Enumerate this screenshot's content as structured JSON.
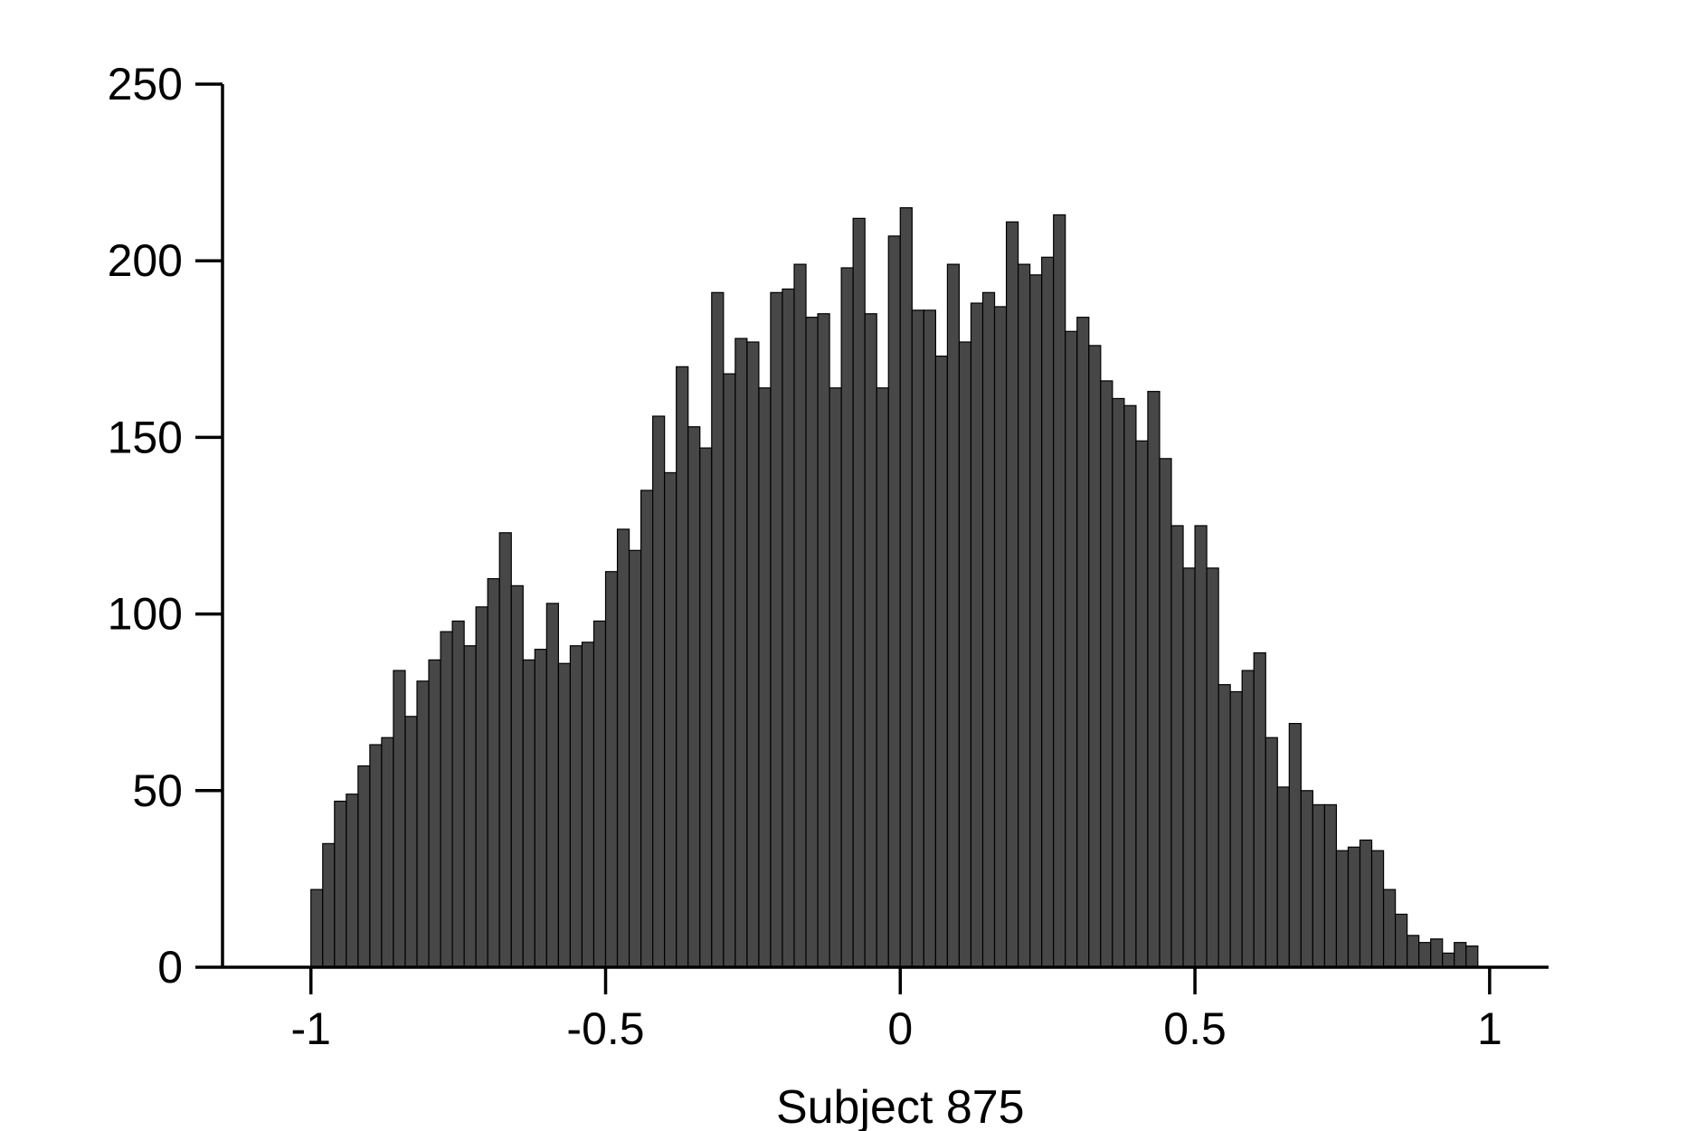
{
  "colors": {
    "bar_fill": "#474747",
    "bar_edge": "#000000",
    "axis": "#000000"
  },
  "chart_data": {
    "type": "bar",
    "title": "",
    "xlabel": "Subject 875",
    "ylabel": "",
    "xlim": [
      -1.15,
      1.1
    ],
    "ylim": [
      0,
      250
    ],
    "xticks": [
      -1,
      -0.5,
      0,
      0.5,
      1
    ],
    "xtick_labels": [
      "-1",
      "-0.5",
      "0",
      "0.5",
      "1"
    ],
    "yticks": [
      0,
      50,
      100,
      150,
      200,
      250
    ],
    "ytick_labels": [
      "0",
      "50",
      "100",
      "150",
      "200",
      "250"
    ],
    "bin_start": -1.0,
    "bin_width": 0.02,
    "values": [
      22,
      35,
      47,
      49,
      57,
      63,
      65,
      84,
      71,
      81,
      87,
      95,
      98,
      91,
      102,
      110,
      123,
      108,
      87,
      90,
      103,
      86,
      91,
      92,
      98,
      112,
      124,
      118,
      135,
      156,
      140,
      170,
      153,
      147,
      191,
      168,
      178,
      177,
      164,
      191,
      192,
      199,
      184,
      185,
      164,
      198,
      212,
      185,
      164,
      207,
      215,
      186,
      186,
      173,
      199,
      177,
      188,
      191,
      187,
      211,
      199,
      196,
      201,
      213,
      180,
      184,
      176,
      166,
      161,
      159,
      149,
      163,
      144,
      125,
      113,
      125,
      113,
      80,
      78,
      84,
      89,
      65,
      51,
      69,
      50,
      46,
      46,
      33,
      34,
      36,
      33,
      22,
      15,
      9,
      7,
      8,
      4,
      7,
      6
    ],
    "grid": false,
    "legend": "none"
  }
}
